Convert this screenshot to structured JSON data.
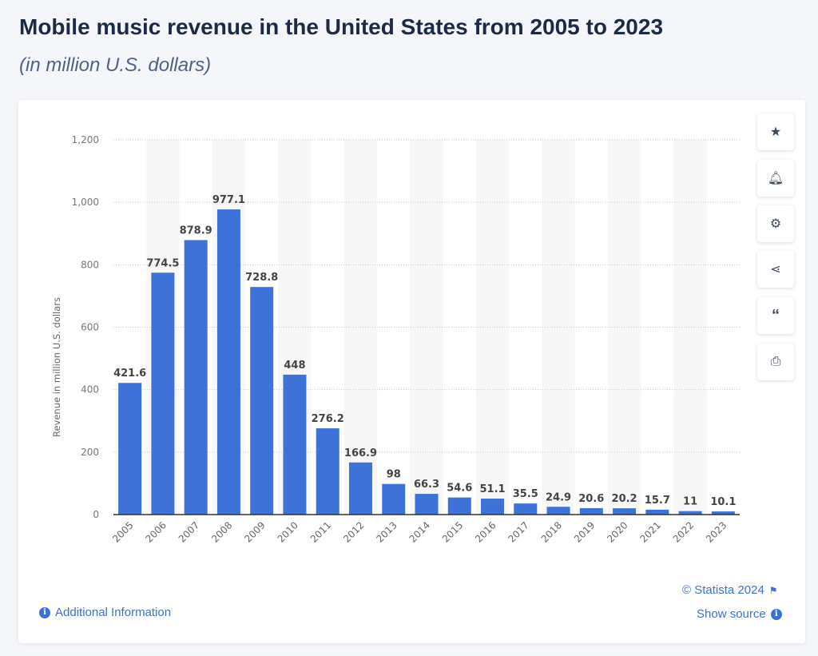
{
  "header": {
    "title": "Mobile music revenue in the United States from 2005 to 2023",
    "subtitle": "(in million U.S. dollars)"
  },
  "chart_data": {
    "type": "bar",
    "title": "Mobile music revenue in the United States from 2005 to 2023",
    "xlabel": "",
    "ylabel": "Revenue in million U.S. dollars",
    "ylim": [
      0,
      1200
    ],
    "yticks": [
      0,
      200,
      400,
      600,
      800,
      1000,
      1200
    ],
    "ytick_labels": [
      "0",
      "200",
      "400",
      "600",
      "800",
      "1,000",
      "1,200"
    ],
    "grid": true,
    "color": "#3f72d7",
    "categories": [
      "2005",
      "2006",
      "2007",
      "2008",
      "2009",
      "2010",
      "2011",
      "2012",
      "2013",
      "2014",
      "2015",
      "2016",
      "2017",
      "2018",
      "2019",
      "2020",
      "2021",
      "2022",
      "2023"
    ],
    "values": [
      421.6,
      774.5,
      878.9,
      977.1,
      728.8,
      448,
      276.2,
      166.9,
      98,
      66.3,
      54.6,
      51.1,
      35.5,
      24.9,
      20.6,
      20.2,
      15.7,
      11,
      10.1
    ]
  },
  "footer": {
    "additional_info": "Additional Information",
    "copyright": "© Statista 2024",
    "show_source": "Show source"
  },
  "sidebar": {
    "icons": [
      "star-icon",
      "bell-icon",
      "gear-icon",
      "share-icon",
      "quote-icon",
      "print-icon"
    ]
  }
}
